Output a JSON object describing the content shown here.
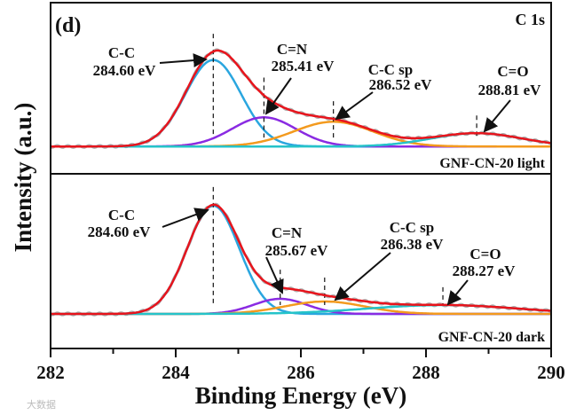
{
  "chart_data": {
    "type": "line",
    "title": "C 1s",
    "panel_tag": "(d)",
    "xlabel": "Binding Energy (eV)",
    "ylabel": "Intensity (a.u.)",
    "xlim": [
      282,
      290
    ],
    "xticks": [
      "282",
      "284",
      "286",
      "288",
      "290"
    ],
    "colors": {
      "envelope": "#e8141c",
      "raw": "#b0b0b0",
      "C-C": "#2aa6df",
      "C=N": "#8a2be2",
      "C-C sp": "#f39a1e",
      "C=O": "#25c3c9"
    },
    "panels": [
      {
        "name": "GNF-CN-20 light",
        "ylim": [
          -0.3,
          1.62
        ],
        "peaks": [
          {
            "label": "C-C",
            "energy_text": "284.60 eV",
            "center": 284.6,
            "amplitude": 0.98,
            "fwhm": 1.05
          },
          {
            "label": "C=N",
            "energy_text": "285.41 eV",
            "center": 285.41,
            "amplitude": 0.33,
            "fwhm": 1.2
          },
          {
            "label": "C-C sp",
            "energy_text": "286.52 eV",
            "center": 286.52,
            "amplitude": 0.28,
            "fwhm": 1.5
          },
          {
            "label": "C=O",
            "energy_text": "288.81 eV",
            "center": 288.81,
            "amplitude": 0.15,
            "fwhm": 1.7
          }
        ]
      },
      {
        "name": "GNF-CN-20 dark",
        "ylim": [
          -0.38,
          1.57
        ],
        "peaks": [
          {
            "label": "C-C",
            "energy_text": "284.60 eV",
            "center": 284.6,
            "amplitude": 1.22,
            "fwhm": 0.98
          },
          {
            "label": "C=N",
            "energy_text": "285.67 eV",
            "center": 285.67,
            "amplitude": 0.17,
            "fwhm": 1.0
          },
          {
            "label": "C-C sp",
            "energy_text": "286.38 eV",
            "center": 286.38,
            "amplitude": 0.14,
            "fwhm": 1.5
          },
          {
            "label": "C=O",
            "energy_text": "288.27 eV",
            "center": 288.27,
            "amplitude": 0.1,
            "fwhm": 2.8
          }
        ]
      }
    ]
  },
  "watermark": "大数据"
}
